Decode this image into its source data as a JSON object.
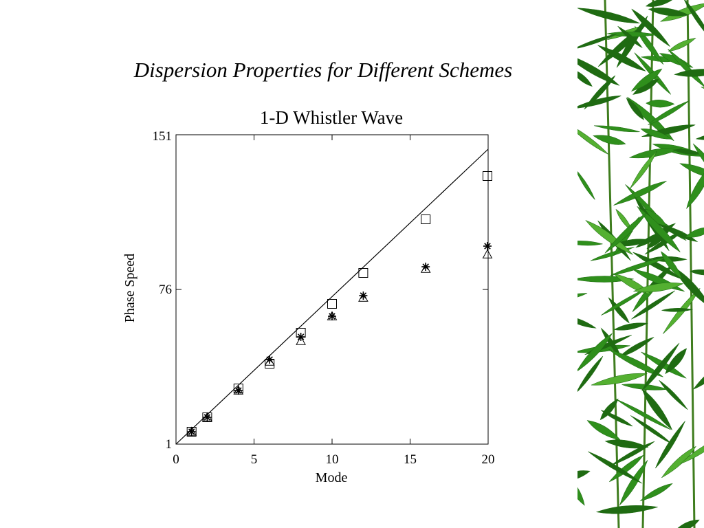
{
  "slide": {
    "title": "Dispersion Properties for Different Schemes",
    "decoration": "bamboo-leaves-border"
  },
  "colors": {
    "background": "#ffffff",
    "text": "#000000",
    "leaf_dark": "#1f6b12",
    "leaf_mid": "#2f8f1c",
    "leaf_light": "#54b031",
    "stem": "#3f7d1e"
  },
  "chart_data": {
    "type": "scatter",
    "title": "1-D Whistler Wave",
    "xlabel": "Mode",
    "ylabel": "Phase Speed",
    "xlim": [
      0,
      20
    ],
    "ylim": [
      1,
      151
    ],
    "x_ticks": [
      0,
      5,
      10,
      15,
      20
    ],
    "y_ticks": [
      1,
      76,
      151
    ],
    "grid": false,
    "line": {
      "name": "",
      "x": [
        0,
        20
      ],
      "y": [
        0,
        144
      ]
    },
    "series": [
      {
        "marker": "square",
        "x": [
          1,
          2,
          4,
          6,
          8,
          10,
          12,
          16,
          20
        ],
        "y": [
          7,
          14,
          28,
          40,
          55,
          69,
          84,
          110,
          131
        ]
      },
      {
        "marker": "triangle",
        "x": [
          1,
          2,
          4,
          6,
          8,
          10,
          12,
          16,
          20
        ],
        "y": [
          7,
          14,
          27,
          41,
          51,
          63,
          72,
          86,
          93
        ]
      },
      {
        "marker": "asterisk",
        "x": [
          1,
          2,
          4,
          6,
          8,
          10,
          12,
          16,
          20
        ],
        "y": [
          7,
          14,
          27,
          42,
          53,
          63,
          73,
          87,
          97
        ]
      }
    ]
  }
}
